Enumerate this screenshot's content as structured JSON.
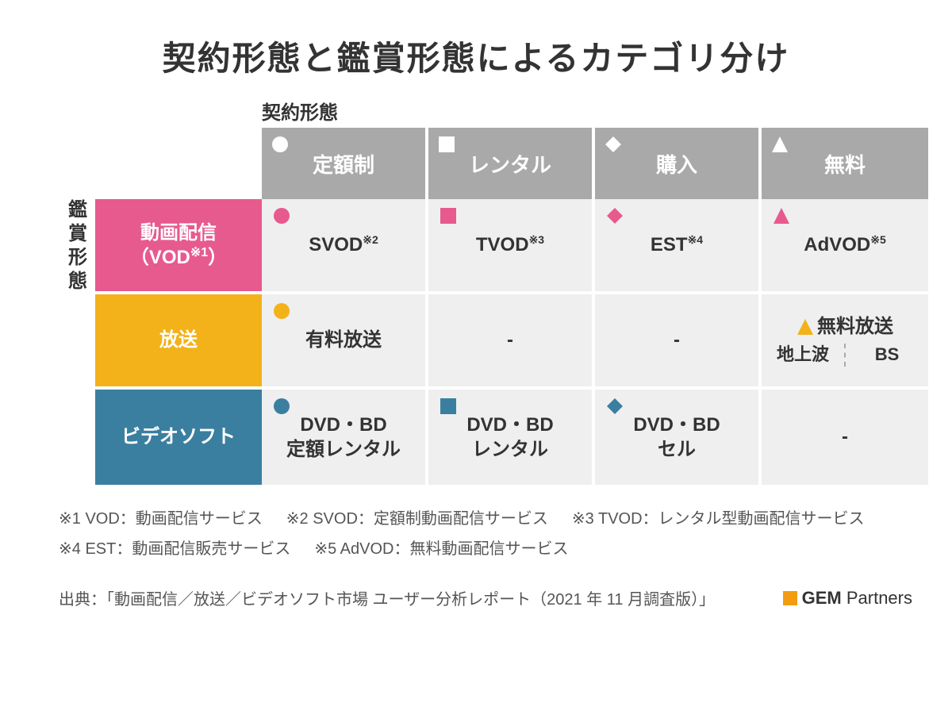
{
  "title": "契約形態と鑑賞形態によるカテゴリ分け",
  "axis": {
    "contract": "契約形態",
    "viewing": "鑑賞形態"
  },
  "columns": [
    {
      "label": "定額制",
      "shape": "circle"
    },
    {
      "label": "レンタル",
      "shape": "square"
    },
    {
      "label": "購入",
      "shape": "diamond"
    },
    {
      "label": "無料",
      "shape": "triangle"
    }
  ],
  "rows": [
    {
      "label_html": "動画配信<br>（VOD<span class='sup'>※1</span>）",
      "color": "#e75a8d"
    },
    {
      "label_html": "放送",
      "color": "#f3b21a"
    },
    {
      "label_html": "ビデオソフト",
      "color": "#3b7fa0"
    }
  ],
  "cells": [
    [
      {
        "text_html": "SVOD<span class='sup'>※2</span>",
        "shape": "circle"
      },
      {
        "text_html": "TVOD<span class='sup'>※3</span>",
        "shape": "square"
      },
      {
        "text_html": "EST<span class='sup'>※4</span>",
        "shape": "diamond"
      },
      {
        "text_html": "AdVOD<span class='sup'>※5</span>",
        "shape": "triangle"
      }
    ],
    [
      {
        "text_html": "有料放送",
        "shape": "circle"
      },
      {
        "text_html": "-"
      },
      {
        "text_html": "-"
      },
      {
        "special": "broadcast_free",
        "top": "無料放送",
        "left": "地上波",
        "right": "BS",
        "shape": "triangle"
      }
    ],
    [
      {
        "text_html": "DVD・BD<br>定額レンタル",
        "shape": "circle"
      },
      {
        "text_html": "DVD・BD<br>レンタル",
        "shape": "square"
      },
      {
        "text_html": "DVD・BD<br>セル",
        "shape": "diamond"
      },
      {
        "text_html": "-"
      }
    ]
  ],
  "footnotes": [
    [
      "※1 VOD：動画配信サービス",
      "※2 SVOD：定額制動画配信サービス",
      "※3 TVOD：レンタル型動画配信サービス"
    ],
    [
      "※4 EST：動画配信販売サービス",
      "※5 AdVOD：無料動画配信サービス"
    ]
  ],
  "source": "出典：「動画配信／放送／ビデオソフト市場 ユーザー分析レポート（2021 年 11 月調査版）」",
  "logo": {
    "brand": "GEM",
    "suffix": "Partners",
    "color": "#f39c12"
  },
  "style": {
    "header_bg": "#a9a9a9",
    "cell_bg": "#efefef",
    "gap_color": "#ffffff",
    "shape_white": "#ffffff"
  }
}
